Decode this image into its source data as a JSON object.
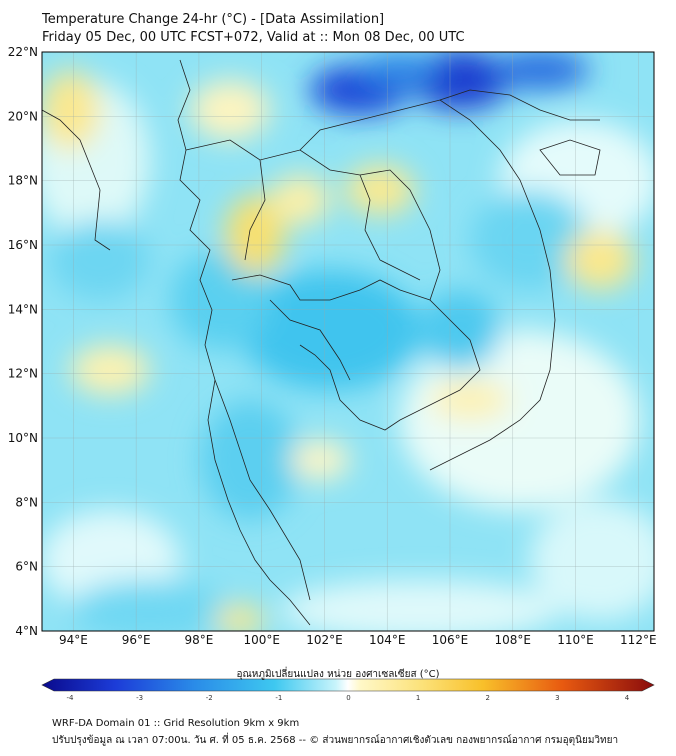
{
  "title": {
    "line1": "Temperature Change 24-hr (°C) - [Data Assimilation]",
    "line2": "Friday 05 Dec, 00 UTC FCST+072, Valid at :: Mon 08 Dec, 00 UTC"
  },
  "map": {
    "lat_ticks": [
      "22°N",
      "20°N",
      "18°N",
      "16°N",
      "14°N",
      "12°N",
      "10°N",
      "8°N",
      "6°N",
      "4°N"
    ],
    "lon_ticks": [
      "94°E",
      "96°E",
      "98°E",
      "100°E",
      "102°E",
      "104°E",
      "106°E",
      "108°E",
      "110°E",
      "112°E"
    ],
    "lat_range": [
      4,
      22
    ],
    "lon_range": [
      93,
      112.5
    ]
  },
  "colorbar": {
    "title": "อุณหภูมิเปลี่ยนแปลง หน่วย องศาเซลเซียส (°C)",
    "ticks": [
      "-4",
      "-3",
      "-2",
      "-1",
      "0",
      "1",
      "2",
      "3",
      "4"
    ],
    "range": [
      -4,
      4
    ]
  },
  "footer": {
    "line1": "WRF-DA Domain 01 :: Grid Resolution 9km x 9km",
    "line2": "ปรับปรุงข้อมูล ณ เวลา 07:00น. วัน ศ. ที่ 05 ธ.ค. 2568 -- © ส่วนพยากรณ์อากาศเชิงตัวเลข กองพยากรณ์อากาศ กรมอุตุนิยมวิทยา"
  }
}
